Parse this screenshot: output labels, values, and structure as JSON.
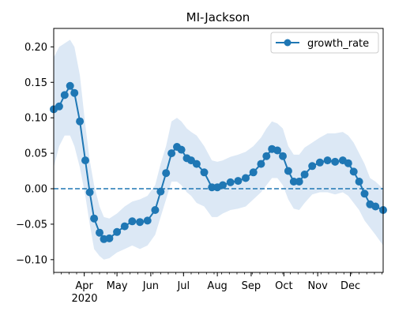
{
  "chart_data": {
    "type": "line",
    "title": "MI-Jackson",
    "xlabel": "",
    "ylabel": "",
    "xlim": [
      "2020-03-04",
      "2020-12-31"
    ],
    "ylim": [
      -0.118,
      0.226
    ],
    "y_ticks": [
      -0.1,
      -0.05,
      0.0,
      0.05,
      0.1,
      0.15,
      0.2
    ],
    "y_tick_labels": [
      "−0.10",
      "−0.05",
      "0.00",
      "0.05",
      "0.10",
      "0.15",
      "0.20"
    ],
    "x_ticks": [
      "2020-04-01",
      "2020-05-01",
      "2020-06-01",
      "2020-07-01",
      "2020-08-01",
      "2020-09-01",
      "2020-10-01",
      "2020-11-01",
      "2020-12-01"
    ],
    "x_tick_labels": [
      "Apr",
      "May",
      "Jun",
      "Jul",
      "Aug",
      "Sep",
      "Oct",
      "Nov",
      "Dec"
    ],
    "x_year_label": "2020",
    "grid": false,
    "legend_position": "top-right",
    "reference_line": {
      "y": 0.0,
      "style": "dashed"
    },
    "series": [
      {
        "name": "growth_rate",
        "color": "#1f77b4",
        "band_color": "#dce8f5",
        "x": [
          "2020-03-04",
          "2020-03-09",
          "2020-03-14",
          "2020-03-19",
          "2020-03-23",
          "2020-03-28",
          "2020-04-02",
          "2020-04-06",
          "2020-04-10",
          "2020-04-15",
          "2020-04-19",
          "2020-04-24",
          "2020-05-01",
          "2020-05-08",
          "2020-05-15",
          "2020-05-22",
          "2020-05-29",
          "2020-06-05",
          "2020-06-10",
          "2020-06-15",
          "2020-06-20",
          "2020-06-25",
          "2020-06-29",
          "2020-07-04",
          "2020-07-08",
          "2020-07-13",
          "2020-07-20",
          "2020-07-27",
          "2020-08-01",
          "2020-08-06",
          "2020-08-13",
          "2020-08-20",
          "2020-08-27",
          "2020-09-03",
          "2020-09-10",
          "2020-09-15",
          "2020-09-20",
          "2020-09-25",
          "2020-09-30",
          "2020-10-05",
          "2020-10-10",
          "2020-10-15",
          "2020-10-20",
          "2020-10-27",
          "2020-11-03",
          "2020-11-10",
          "2020-11-17",
          "2020-11-24",
          "2020-11-29",
          "2020-12-04",
          "2020-12-09",
          "2020-12-14",
          "2020-12-19",
          "2020-12-24",
          "2020-12-31"
        ],
        "values": [
          0.112,
          0.116,
          0.132,
          0.145,
          0.135,
          0.095,
          0.04,
          -0.005,
          -0.042,
          -0.062,
          -0.071,
          -0.07,
          -0.061,
          -0.053,
          -0.046,
          -0.047,
          -0.045,
          -0.03,
          -0.004,
          0.022,
          0.05,
          0.059,
          0.055,
          0.043,
          0.04,
          0.035,
          0.023,
          0.002,
          0.002,
          0.005,
          0.009,
          0.011,
          0.015,
          0.023,
          0.035,
          0.046,
          0.056,
          0.054,
          0.046,
          0.025,
          0.01,
          0.01,
          0.02,
          0.032,
          0.037,
          0.04,
          0.038,
          0.04,
          0.036,
          0.024,
          0.01,
          -0.007,
          -0.022,
          -0.025,
          -0.03
        ],
        "lower": [
          0.03,
          0.06,
          0.075,
          0.075,
          0.06,
          0.03,
          -0.01,
          -0.05,
          -0.085,
          -0.095,
          -0.1,
          -0.098,
          -0.09,
          -0.085,
          -0.08,
          -0.085,
          -0.08,
          -0.065,
          -0.04,
          -0.015,
          0.01,
          0.01,
          0.005,
          -0.005,
          -0.01,
          -0.02,
          -0.025,
          -0.04,
          -0.04,
          -0.035,
          -0.03,
          -0.028,
          -0.025,
          -0.015,
          -0.005,
          0.005,
          0.015,
          0.015,
          0.005,
          -0.015,
          -0.028,
          -0.03,
          -0.02,
          -0.008,
          -0.005,
          -0.005,
          -0.008,
          -0.005,
          -0.01,
          -0.02,
          -0.03,
          -0.045,
          -0.055,
          -0.065,
          -0.08
        ],
        "upper": [
          0.185,
          0.2,
          0.205,
          0.21,
          0.2,
          0.16,
          0.09,
          0.04,
          0.005,
          -0.025,
          -0.04,
          -0.042,
          -0.035,
          -0.025,
          -0.018,
          -0.015,
          -0.01,
          0.005,
          0.035,
          0.06,
          0.095,
          0.1,
          0.095,
          0.085,
          0.08,
          0.075,
          0.06,
          0.04,
          0.038,
          0.04,
          0.045,
          0.048,
          0.052,
          0.06,
          0.072,
          0.085,
          0.095,
          0.092,
          0.085,
          0.06,
          0.048,
          0.048,
          0.058,
          0.065,
          0.072,
          0.078,
          0.078,
          0.08,
          0.075,
          0.065,
          0.05,
          0.035,
          0.015,
          0.01,
          0.0
        ]
      }
    ]
  }
}
